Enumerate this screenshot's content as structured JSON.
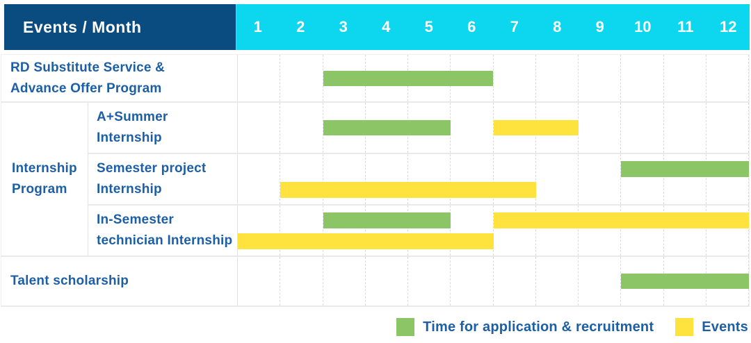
{
  "colors": {
    "header_bg": "#0b4c80",
    "months_bg": "#0cd7ef",
    "label_text": "#1d5fa6",
    "green": "#8bc565",
    "yellow": "#fee33e"
  },
  "chart_data": {
    "type": "table",
    "subtype": "gantt",
    "title": "Events / Month",
    "x_label": "Month",
    "x_range": [
      1,
      12
    ],
    "months": [
      "1",
      "2",
      "3",
      "4",
      "5",
      "6",
      "7",
      "8",
      "9",
      "10",
      "11",
      "12"
    ],
    "group_label": "Internship Program",
    "group_label_lines": [
      "Internship",
      "Program"
    ],
    "legend": [
      {
        "key": "green",
        "label": "Time for application & recruitment",
        "color": "#8bc565"
      },
      {
        "key": "yellow",
        "label": "Events",
        "color": "#fee33e"
      }
    ],
    "rows": [
      {
        "group": "",
        "label": "RD Substitute Service & Advance Offer Program",
        "label_lines": [
          "RD Substitute Service &",
          "Advance Offer Program"
        ],
        "bars": [
          {
            "series": "Time for application & recruitment",
            "color": "green",
            "start_month": 3,
            "end_month": 6,
            "line": 0
          }
        ]
      },
      {
        "group": "Internship Program",
        "label": "A+Summer Internship",
        "label_lines": [
          "A+Summer",
          "Internship"
        ],
        "bars": [
          {
            "series": "Time for application & recruitment",
            "color": "green",
            "start_month": 3,
            "end_month": 5,
            "line": 0
          },
          {
            "series": "Events",
            "color": "yellow",
            "start_month": 7,
            "end_month": 8,
            "line": 0
          }
        ]
      },
      {
        "group": "Internship Program",
        "label": "Semester project Internship",
        "label_lines": [
          "Semester project",
          "Internship"
        ],
        "bars": [
          {
            "series": "Time for application & recruitment",
            "color": "green",
            "start_month": 10,
            "end_month": 12,
            "line": 0
          },
          {
            "series": "Events",
            "color": "yellow",
            "start_month": 2,
            "end_month": 7,
            "line": 1
          }
        ]
      },
      {
        "group": "Internship Program",
        "label": "In-Semester technician Internship",
        "label_lines": [
          "In-Semester",
          "technician Internship"
        ],
        "bars": [
          {
            "series": "Time for application & recruitment",
            "color": "green",
            "start_month": 3,
            "end_month": 5,
            "line": 0
          },
          {
            "series": "Events",
            "color": "yellow",
            "start_month": 7,
            "end_month": 12,
            "line": 0
          },
          {
            "series": "Events",
            "color": "yellow",
            "start_month": 1,
            "end_month": 6,
            "line": 1
          }
        ]
      },
      {
        "group": "",
        "label": "Talent scholarship",
        "label_lines": [
          "Talent scholarship"
        ],
        "bars": [
          {
            "series": "Time for application & recruitment",
            "color": "green",
            "start_month": 10,
            "end_month": 12,
            "line": 0
          }
        ]
      }
    ]
  }
}
